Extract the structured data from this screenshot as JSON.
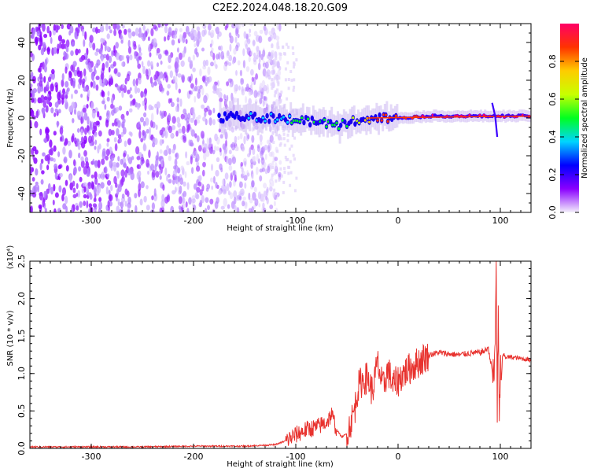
{
  "title": "C2E2.2024.048.18.20.G09",
  "chart_data": [
    {
      "type": "heatmap",
      "xlabel": "Height of straight line (km)",
      "ylabel": "Frequency (Hz)",
      "xlim": [
        -360,
        130
      ],
      "ylim": [
        -50,
        50
      ],
      "x_ticks": [
        -300,
        -200,
        -100,
        0,
        100
      ],
      "y_ticks": [
        -40,
        -20,
        0,
        20,
        40
      ],
      "colorbar": {
        "label": "Normalized spectral amplitude",
        "range": [
          0,
          1
        ],
        "ticks": [
          "0.0",
          "0.2",
          "0.4",
          "0.6",
          "0.8"
        ],
        "colors": [
          "#f4f0fb",
          "#8a00ff",
          "#0000ff",
          "#00d5ff",
          "#00ff20",
          "#c8ff00",
          "#ffcc00",
          "#ff3300",
          "#ff0066"
        ]
      },
      "ridge": [
        {
          "x": -175,
          "y": 0,
          "amp": 0.25
        },
        {
          "x": -150,
          "y": 1,
          "amp": 0.3
        },
        {
          "x": -120,
          "y": 0,
          "amp": 0.4
        },
        {
          "x": -100,
          "y": -1,
          "amp": 0.45
        },
        {
          "x": -80,
          "y": -2,
          "amp": 0.5
        },
        {
          "x": -60,
          "y": -4,
          "amp": 0.45
        },
        {
          "x": -40,
          "y": -1,
          "amp": 0.6
        },
        {
          "x": -20,
          "y": 0,
          "amp": 0.85
        },
        {
          "x": 0,
          "y": 0,
          "amp": 0.9
        },
        {
          "x": 30,
          "y": 1,
          "amp": 0.95
        },
        {
          "x": 60,
          "y": 1,
          "amp": 0.95
        },
        {
          "x": 90,
          "y": 1,
          "amp": 0.95
        },
        {
          "x": 130,
          "y": 1,
          "amp": 0.95
        }
      ]
    },
    {
      "type": "line",
      "xlabel": "Height of straight line (km)",
      "ylabel": "SNR (10 * v/v)",
      "y_multiplier": "(x10⁴)",
      "xlim": [
        -360,
        130
      ],
      "ylim": [
        0,
        2.5
      ],
      "x_ticks": [
        -300,
        -200,
        -100,
        0,
        100
      ],
      "y_ticks": [
        "0.0",
        "0.5",
        "1.0",
        "1.5",
        "2.0",
        "2.5"
      ],
      "color": "#e8322e",
      "series": [
        {
          "x": [
            -360,
            -300,
            -250,
            -200,
            -150,
            -120,
            -110,
            -100,
            -90,
            -80,
            -70,
            -65,
            -60,
            -55,
            -50,
            -45,
            -42,
            -40,
            -38,
            -35,
            -30,
            -25,
            -20,
            -15,
            -10,
            -5,
            0,
            5,
            10,
            15,
            20,
            25,
            30,
            40,
            50,
            60,
            70,
            80,
            85,
            88,
            90,
            92,
            94,
            95,
            96,
            97,
            98,
            99,
            100,
            101,
            102,
            103,
            105,
            110,
            120,
            130
          ],
          "y": [
            0.02,
            0.02,
            0.02,
            0.03,
            0.03,
            0.05,
            0.1,
            0.18,
            0.25,
            0.28,
            0.35,
            0.45,
            0.25,
            0.15,
            0.2,
            0.4,
            0.55,
            0.75,
            0.85,
            0.9,
            0.95,
            0.75,
            1.15,
            0.8,
            1.05,
            0.85,
            0.9,
            1.0,
            1.05,
            1.1,
            1.15,
            1.2,
            1.25,
            1.28,
            1.26,
            1.25,
            1.27,
            1.28,
            1.3,
            1.35,
            1.2,
            1.05,
            0.9,
            1.5,
            2.5,
            0.5,
            1.8,
            0.2,
            1.1,
            0.9,
            1.2,
            1.25,
            1.22,
            1.22,
            1.2,
            1.18
          ]
        }
      ]
    }
  ]
}
